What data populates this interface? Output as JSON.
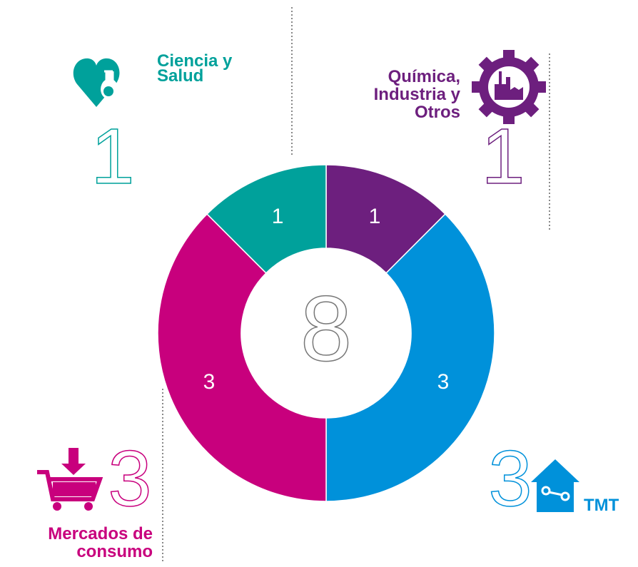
{
  "chart_data": {
    "type": "donut",
    "categories": [
      "Química, Industria y Otros",
      "TMT",
      "Mercados de consumo",
      "Ciencia y Salud"
    ],
    "values": [
      1,
      3,
      3,
      1
    ],
    "colors": [
      "#6d1f7e",
      "#0091da",
      "#c8007d",
      "#00a19b"
    ],
    "total": 8
  }
}
